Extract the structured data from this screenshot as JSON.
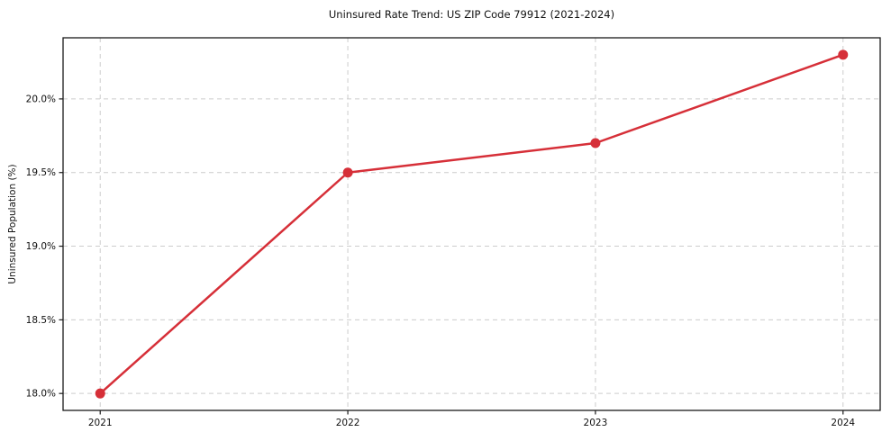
{
  "chart_data": {
    "type": "line",
    "title": "Uninsured Rate Trend: US ZIP Code 79912 (2021-2024)",
    "ylabel": "Uninsured Population (%)",
    "xlabel": "",
    "x": [
      2021,
      2022,
      2023,
      2024
    ],
    "values": [
      18.0,
      19.5,
      19.7,
      20.3
    ],
    "xtick_labels": [
      "2021",
      "2022",
      "2023",
      "2024"
    ],
    "yticks": [
      18.0,
      18.5,
      19.0,
      19.5,
      20.0
    ],
    "ytick_labels": [
      "18.0%",
      "18.5%",
      "19.0%",
      "19.5%",
      "20.0%"
    ],
    "xlim": [
      2020.85,
      2024.15
    ],
    "ylim": [
      17.885,
      20.415
    ],
    "grid": true,
    "grid_style": "dashed",
    "legend": "none",
    "colors": {
      "line": "#d62f38",
      "marker": "#d62f38",
      "grid": "#cccccc",
      "spine": "#1a1a1a",
      "tick_text": "#111111",
      "background": "#ffffff"
    }
  }
}
